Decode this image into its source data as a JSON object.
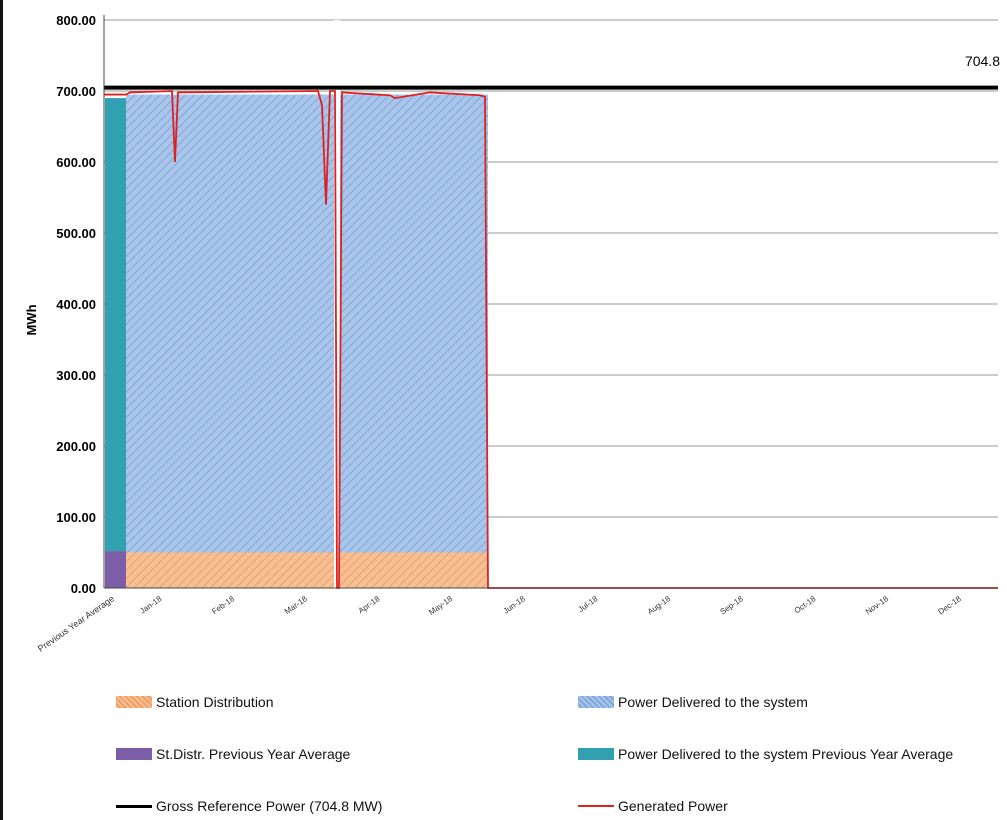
{
  "chart_data": {
    "type": "area",
    "ylabel": "MWh",
    "ylim": [
      0,
      800
    ],
    "y_ticks": [
      "0.00",
      "100.00",
      "200.00",
      "300.00",
      "400.00",
      "500.00",
      "600.00",
      "700.00",
      "800.00"
    ],
    "categories": [
      "Previous Year Average",
      "Jan-18",
      "Feb-18",
      "Mar-18",
      "Apr-18",
      "May-18",
      "Jun-18",
      "Jul-18",
      "Aug-18",
      "Sep-18",
      "Oct-18",
      "Nov-18",
      "Dec-18"
    ],
    "reference_value_label": "704.8",
    "series": [
      {
        "name": "Station Distribution",
        "color": "#f4b183",
        "values": [
          null,
          50,
          50,
          50,
          50,
          50,
          0,
          0,
          0,
          0,
          0,
          0,
          0
        ]
      },
      {
        "name": "Power Delivered to the system",
        "color": "#9dc3e6",
        "values": [
          null,
          645,
          645,
          645,
          645,
          640,
          0,
          0,
          0,
          0,
          0,
          0,
          0
        ]
      },
      {
        "name": "St.Distr. Previous Year Average",
        "color": "#7b5ea7",
        "values": [
          52,
          null,
          null,
          null,
          null,
          null,
          null,
          null,
          null,
          null,
          null,
          null,
          null
        ]
      },
      {
        "name": "Power Delivered to the system Previous Year Average",
        "color": "#31a0b0",
        "values": [
          638,
          null,
          null,
          null,
          null,
          null,
          null,
          null,
          null,
          null,
          null,
          null,
          null
        ]
      },
      {
        "name": "Gross Reference Power (704.8 MW)",
        "color": "#000000",
        "values": [
          704.8,
          704.8,
          704.8,
          704.8,
          704.8,
          704.8,
          704.8,
          704.8,
          704.8,
          704.8,
          704.8,
          704.8,
          704.8
        ]
      },
      {
        "name": "Generated Power",
        "color": "#e02020",
        "values": [
          695,
          698,
          700,
          540,
          695,
          692,
          0,
          0,
          0,
          0,
          0,
          0,
          0
        ]
      }
    ],
    "generated_power_dips": [
      {
        "date": "Jan-18",
        "value": 600
      },
      {
        "date": "Mar-18",
        "value": 540
      },
      {
        "date": "Mar-18",
        "value": 0
      }
    ],
    "grid": true,
    "legend_position": "bottom"
  }
}
